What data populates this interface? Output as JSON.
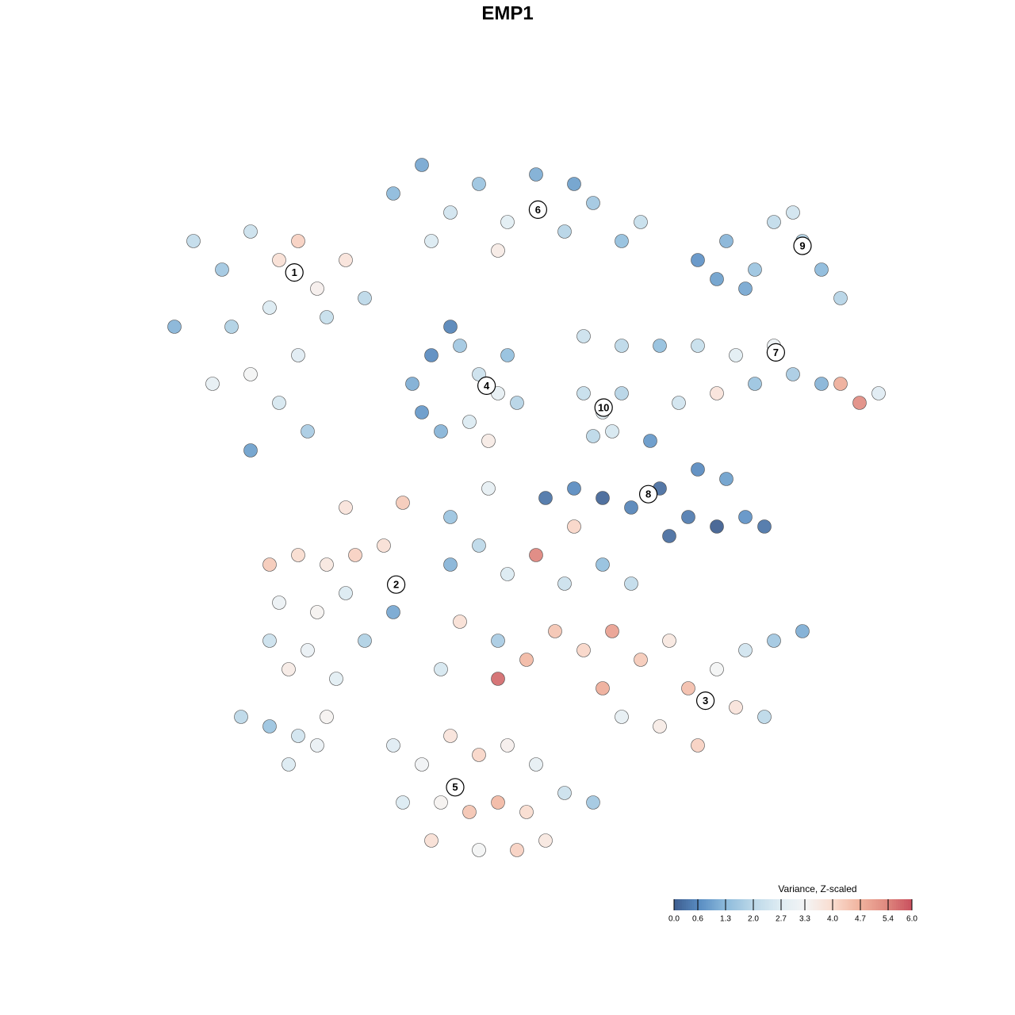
{
  "chart_data": {
    "type": "scatter",
    "title": "EMP1",
    "colorbar_title": "Variance, Z-scaled",
    "colorbar_ticks": [
      {
        "value": 0.0,
        "label": "0.0"
      },
      {
        "value": 0.6,
        "label": "0.6"
      },
      {
        "value": 1.3,
        "label": "1.3"
      },
      {
        "value": 2.0,
        "label": "2.0"
      },
      {
        "value": 2.7,
        "label": "2.7"
      },
      {
        "value": 3.3,
        "label": "3.3"
      },
      {
        "value": 4.0,
        "label": "4.0"
      },
      {
        "value": 4.7,
        "label": "4.7"
      },
      {
        "value": 5.4,
        "label": "5.4"
      },
      {
        "value": 6.0,
        "label": "6.0"
      }
    ],
    "colors": [
      "#3d5d8f",
      "#5b8fc4",
      "#8fbcdc",
      "#bcd8e8",
      "#deecf3",
      "#f4f4f4",
      "#f9dccf",
      "#f1b49f",
      "#e08a80",
      "#c9505e"
    ],
    "xlim": [
      -40,
      40
    ],
    "ylim": [
      -40,
      40
    ],
    "clusters": [
      {
        "label": "1",
        "x": -22.4,
        "y": 24.7
      },
      {
        "label": "2",
        "x": -11.7,
        "y": -8.1
      },
      {
        "label": "3",
        "x": 20.8,
        "y": -20.3
      },
      {
        "label": "4",
        "x": -2.2,
        "y": 12.8
      },
      {
        "label": "5",
        "x": -5.5,
        "y": -29.4
      },
      {
        "label": "6",
        "x": 3.2,
        "y": 31.3
      },
      {
        "label": "7",
        "x": 28.2,
        "y": 16.3
      },
      {
        "label": "8",
        "x": 14.8,
        "y": 1.4
      },
      {
        "label": "9",
        "x": 31,
        "y": 27.5
      },
      {
        "label": "10",
        "x": 10.1,
        "y": 10.5
      }
    ],
    "points": [
      [
        -33,
        28,
        2.1
      ],
      [
        -30,
        25,
        1.6
      ],
      [
        -27,
        29,
        2.3
      ],
      [
        -24,
        26,
        3.9
      ],
      [
        -22,
        28,
        4.2
      ],
      [
        -20,
        23,
        3.5
      ],
      [
        -25,
        21,
        2.6
      ],
      [
        -29,
        19,
        1.8
      ],
      [
        -35,
        19,
        1.2
      ],
      [
        -31,
        13,
        2.9
      ],
      [
        -27,
        14,
        3.3
      ],
      [
        -22,
        16,
        2.7
      ],
      [
        -19,
        20,
        2.2
      ],
      [
        -24,
        11,
        2.5
      ],
      [
        -27,
        6,
        0.9
      ],
      [
        -21,
        8,
        1.7
      ],
      [
        -17,
        26,
        3.8
      ],
      [
        -15,
        22,
        2.0
      ],
      [
        -12,
        33,
        1.3
      ],
      [
        -9,
        36,
        1.0
      ],
      [
        -6,
        31,
        2.4
      ],
      [
        -3,
        34,
        1.5
      ],
      [
        0,
        30,
        2.8
      ],
      [
        3,
        35,
        1.1
      ],
      [
        6,
        29,
        1.9
      ],
      [
        9,
        32,
        1.6
      ],
      [
        12,
        28,
        1.4
      ],
      [
        14,
        30,
        2.2
      ],
      [
        -1,
        27,
        3.6
      ],
      [
        7,
        34,
        0.9
      ],
      [
        -8,
        28,
        2.6
      ],
      [
        20,
        26,
        0.7
      ],
      [
        23,
        28,
        1.2
      ],
      [
        26,
        25,
        1.5
      ],
      [
        28,
        30,
        2.1
      ],
      [
        31,
        28,
        1.8
      ],
      [
        33,
        25,
        1.3
      ],
      [
        35,
        22,
        1.9
      ],
      [
        25,
        23,
        1.0
      ],
      [
        30,
        31,
        2.4
      ],
      [
        22,
        24,
        0.9
      ],
      [
        8,
        18,
        2.3
      ],
      [
        12,
        17,
        2.0
      ],
      [
        16,
        17,
        1.4
      ],
      [
        20,
        17,
        2.2
      ],
      [
        24,
        16,
        2.8
      ],
      [
        28,
        17,
        3.1
      ],
      [
        30,
        14,
        1.7
      ],
      [
        33,
        13,
        1.2
      ],
      [
        35,
        13,
        4.8
      ],
      [
        37,
        11,
        5.3
      ],
      [
        39,
        12,
        2.7
      ],
      [
        26,
        13,
        1.5
      ],
      [
        22,
        12,
        3.8
      ],
      [
        18,
        11,
        2.4
      ],
      [
        -10,
        13,
        1.1
      ],
      [
        -8,
        16,
        0.6
      ],
      [
        -5,
        17,
        1.6
      ],
      [
        -3,
        14,
        2.3
      ],
      [
        -1,
        12,
        2.9
      ],
      [
        1,
        11,
        1.9
      ],
      [
        -4,
        9,
        2.6
      ],
      [
        -7,
        8,
        1.2
      ],
      [
        -9,
        10,
        0.8
      ],
      [
        -2,
        7,
        3.6
      ],
      [
        0,
        16,
        1.4
      ],
      [
        -6,
        19,
        0.5
      ],
      [
        8,
        12,
        2.2
      ],
      [
        10,
        10,
        2.8
      ],
      [
        12,
        12,
        1.9
      ],
      [
        11,
        8,
        2.5
      ],
      [
        9,
        7.5,
        2.0
      ],
      [
        4,
        1,
        0.3
      ],
      [
        7,
        2,
        0.6
      ],
      [
        10,
        1,
        0.1
      ],
      [
        13,
        0,
        0.5
      ],
      [
        16,
        2,
        0.2
      ],
      [
        19,
        -1,
        0.4
      ],
      [
        22,
        -2,
        0.0
      ],
      [
        25,
        -1,
        0.7
      ],
      [
        27,
        -2,
        0.3
      ],
      [
        20,
        4,
        0.6
      ],
      [
        23,
        3,
        0.9
      ],
      [
        17,
        -3,
        0.2
      ],
      [
        15,
        7,
        0.8
      ],
      [
        7,
        -2,
        4.1
      ],
      [
        -25,
        -6,
        4.3
      ],
      [
        -22,
        -5,
        4.0
      ],
      [
        -19,
        -6,
        3.7
      ],
      [
        -16,
        -5,
        4.2
      ],
      [
        -13,
        -4,
        3.9
      ],
      [
        -24,
        -10,
        3.1
      ],
      [
        -20,
        -11,
        3.4
      ],
      [
        -17,
        -9,
        2.6
      ],
      [
        -25,
        -14,
        2.3
      ],
      [
        -21,
        -15,
        3.0
      ],
      [
        -15,
        -14,
        1.8
      ],
      [
        -12,
        -11,
        1.0
      ],
      [
        -23,
        -17,
        3.6
      ],
      [
        -18,
        -18,
        2.8
      ],
      [
        -6,
        -6,
        1.2
      ],
      [
        -3,
        -4,
        2.0
      ],
      [
        0,
        -7,
        2.6
      ],
      [
        3,
        -5,
        5.4
      ],
      [
        6,
        -8,
        2.3
      ],
      [
        10,
        -6,
        1.4
      ],
      [
        13,
        -8,
        2.1
      ],
      [
        -5,
        -12,
        3.9
      ],
      [
        -1,
        -14,
        1.7
      ],
      [
        2,
        -16,
        4.6
      ],
      [
        5,
        -13,
        4.4
      ],
      [
        8,
        -15,
        4.1
      ],
      [
        11,
        -13,
        5.0
      ],
      [
        14,
        -16,
        4.3
      ],
      [
        17,
        -14,
        3.7
      ],
      [
        19,
        -19,
        4.5
      ],
      [
        22,
        -17,
        3.3
      ],
      [
        25,
        -15,
        2.4
      ],
      [
        28,
        -14,
        1.6
      ],
      [
        31,
        -13,
        1.1
      ],
      [
        24,
        -21,
        3.8
      ],
      [
        20,
        -25,
        4.2
      ],
      [
        16,
        -23,
        3.6
      ],
      [
        12,
        -22,
        2.9
      ],
      [
        -1,
        -18,
        5.7
      ],
      [
        -7,
        -17,
        2.5
      ],
      [
        27,
        -22,
        2.0
      ],
      [
        10,
        -19,
        4.8
      ],
      [
        -12,
        -25,
        2.7
      ],
      [
        -9,
        -27,
        3.2
      ],
      [
        -6,
        -24,
        3.8
      ],
      [
        -3,
        -26,
        4.1
      ],
      [
        0,
        -25,
        3.5
      ],
      [
        3,
        -27,
        2.9
      ],
      [
        -7,
        -31,
        3.4
      ],
      [
        -4,
        -32,
        4.4
      ],
      [
        -1,
        -31,
        4.6
      ],
      [
        2,
        -32,
        4.0
      ],
      [
        6,
        -30,
        2.3
      ],
      [
        9,
        -31,
        1.6
      ],
      [
        -8,
        -35,
        3.9
      ],
      [
        -3,
        -36,
        3.3
      ],
      [
        1,
        -36,
        4.2
      ],
      [
        4,
        -35,
        3.7
      ],
      [
        -11,
        -31,
        2.6
      ],
      [
        -28,
        -22,
        2.0
      ],
      [
        -25,
        -23,
        1.5
      ],
      [
        -22,
        -24,
        2.4
      ],
      [
        -20,
        -25,
        3.0
      ],
      [
        -23,
        -27,
        2.6
      ],
      [
        -19,
        -22,
        3.4
      ],
      [
        -17,
        0,
        3.8
      ],
      [
        -11,
        0.5,
        4.3
      ],
      [
        -2,
        2,
        2.9
      ],
      [
        -6,
        -1,
        1.5
      ]
    ]
  }
}
